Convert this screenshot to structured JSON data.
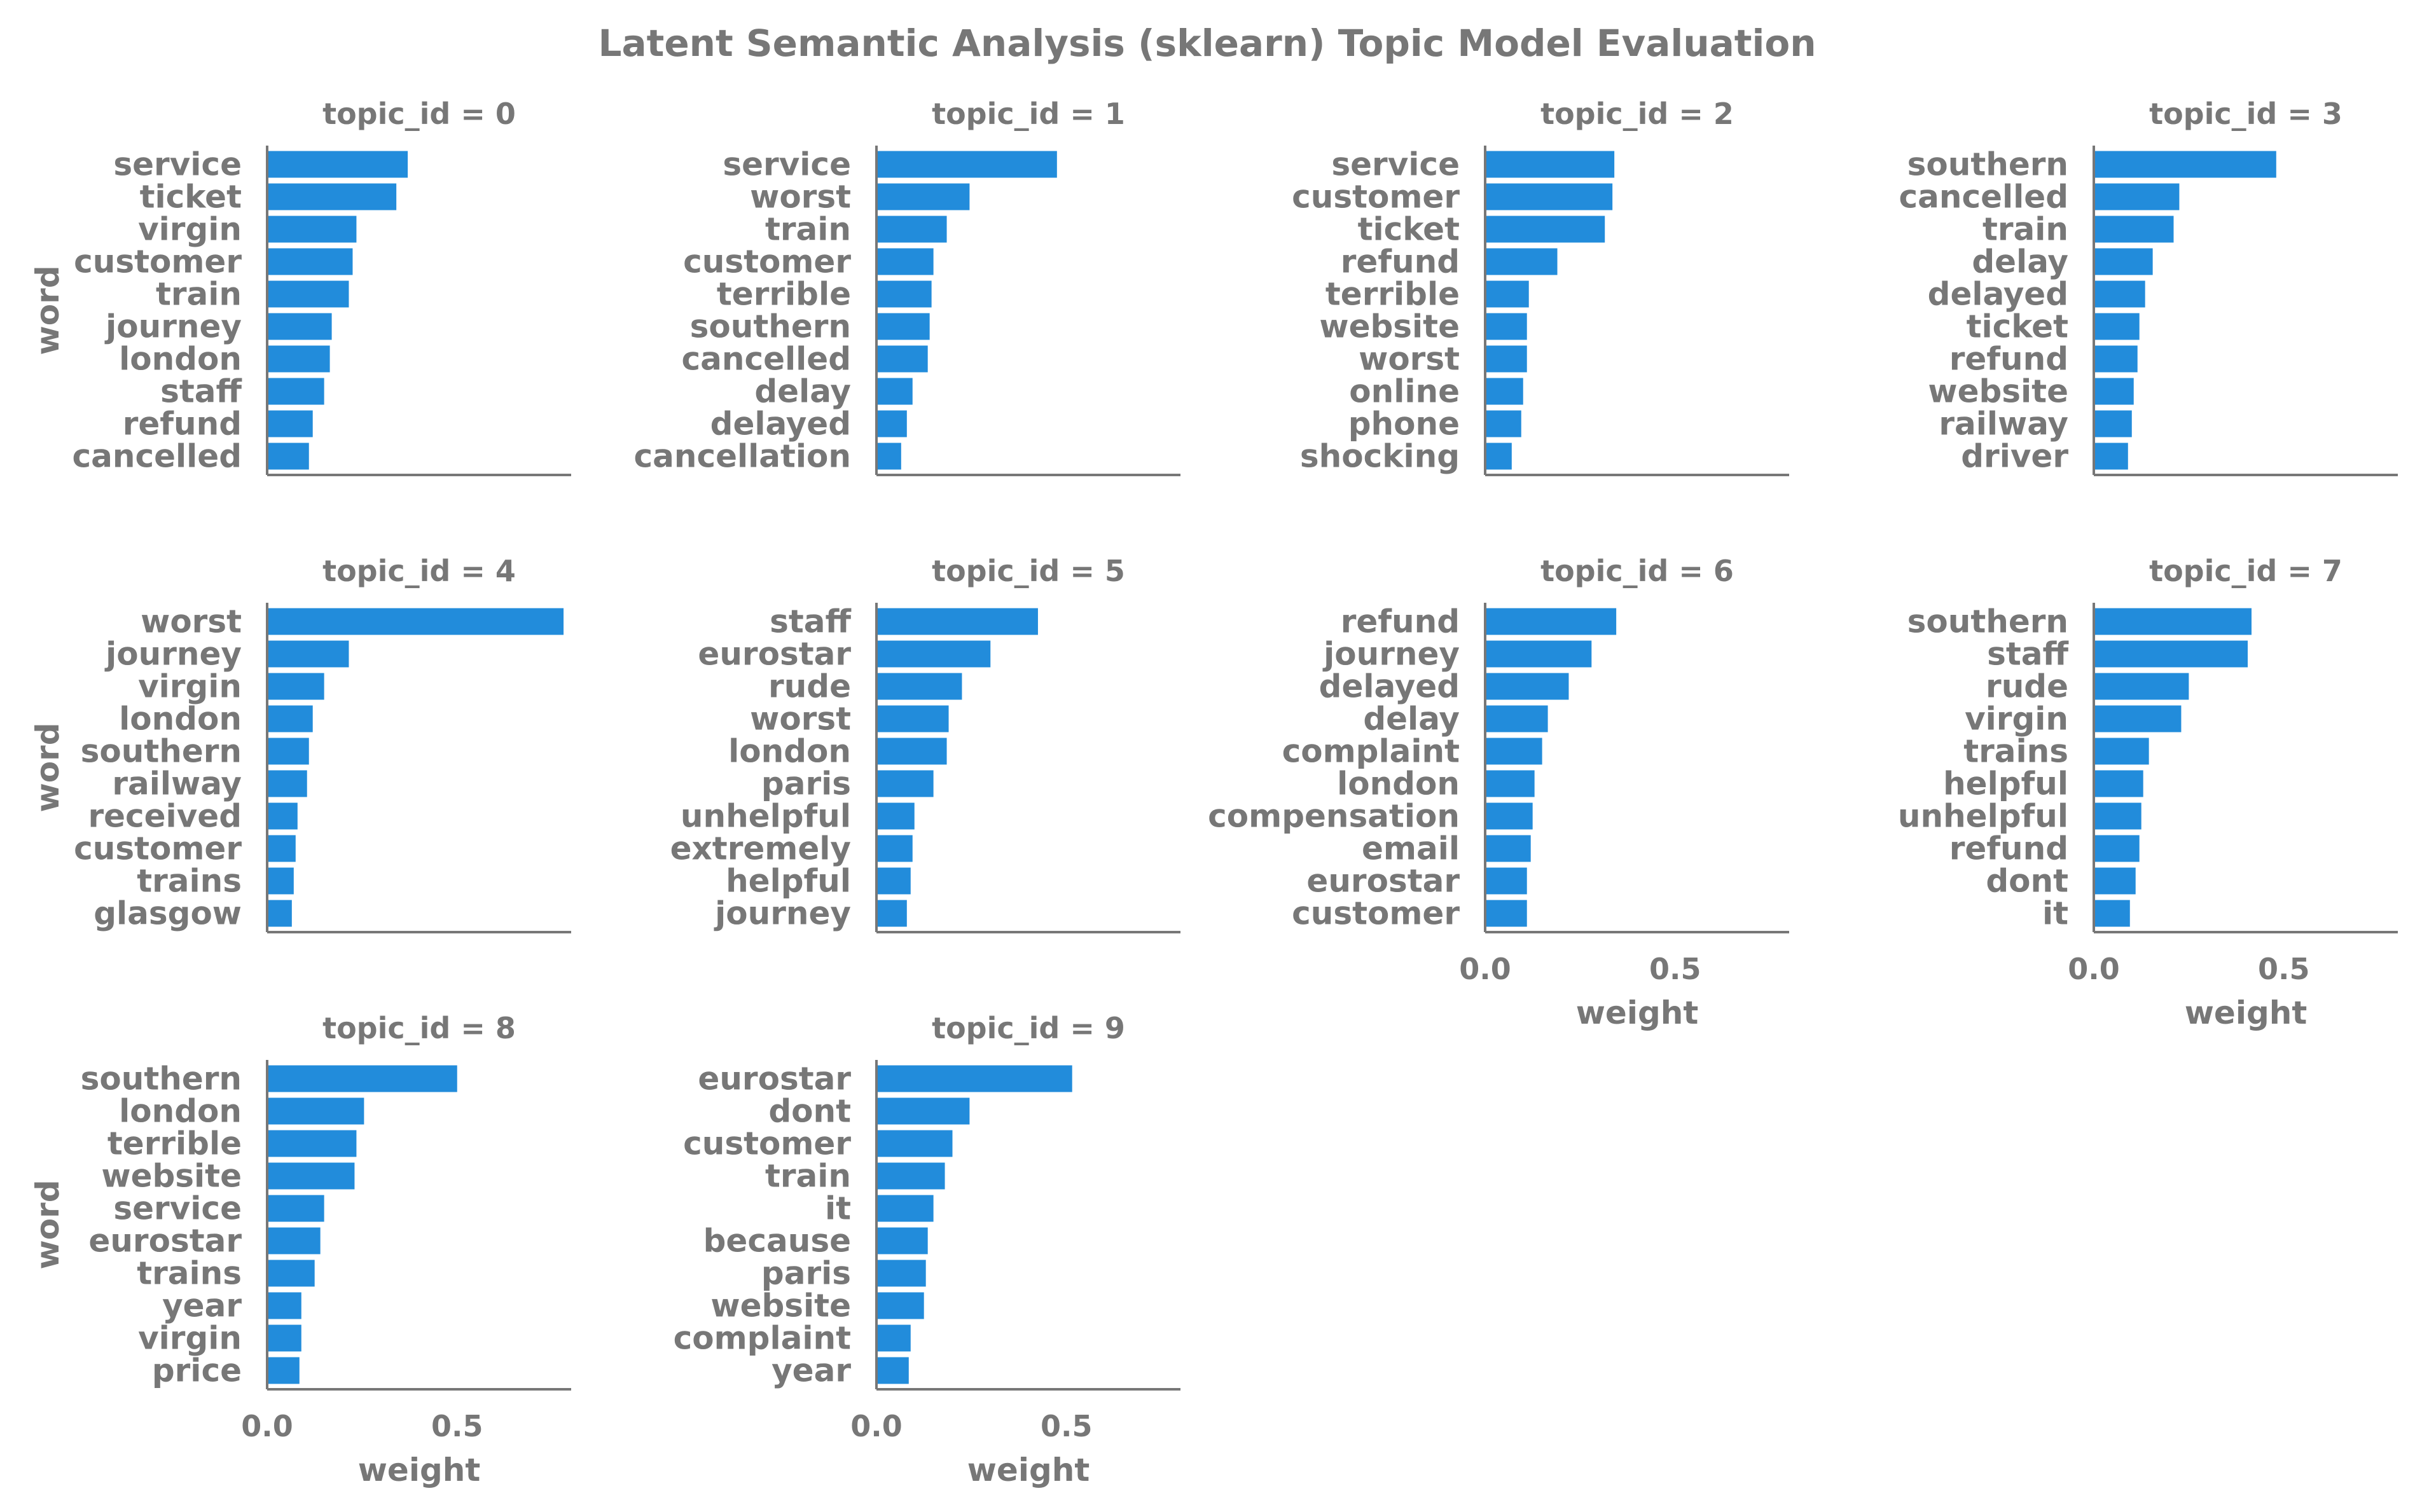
{
  "chart_data": {
    "type": "bar",
    "title": "Latent Semantic Analysis (sklearn) Topic Model Evaluation",
    "facet_label_prefix": "topic_id = ",
    "xlabel": "weight",
    "ylabel": "word",
    "xlim": [
      0,
      0.8
    ],
    "xticks": [
      {
        "value": 0.0,
        "label": "0.0"
      },
      {
        "value": 0.5,
        "label": "0.5"
      }
    ],
    "bar_color": "#228cdb",
    "text_color": "#777777",
    "axis_color": "#777777",
    "facets": [
      {
        "topic_id": "0",
        "words": [
          "service",
          "ticket",
          "virgin",
          "customer",
          "train",
          "journey",
          "london",
          "staff",
          "refund",
          "cancelled"
        ],
        "weights": [
          0.37,
          0.34,
          0.235,
          0.225,
          0.215,
          0.17,
          0.165,
          0.15,
          0.12,
          0.11
        ]
      },
      {
        "topic_id": "1",
        "words": [
          "service",
          "worst",
          "train",
          "customer",
          "terrible",
          "southern",
          "cancelled",
          "delay",
          "delayed",
          "cancellation"
        ],
        "weights": [
          0.475,
          0.245,
          0.185,
          0.15,
          0.145,
          0.14,
          0.135,
          0.095,
          0.08,
          0.065
        ]
      },
      {
        "topic_id": "2",
        "words": [
          "service",
          "customer",
          "ticket",
          "refund",
          "terrible",
          "website",
          "worst",
          "online",
          "phone",
          "shocking"
        ],
        "weights": [
          0.34,
          0.335,
          0.315,
          0.19,
          0.115,
          0.11,
          0.11,
          0.1,
          0.095,
          0.07
        ]
      },
      {
        "topic_id": "3",
        "words": [
          "southern",
          "cancelled",
          "train",
          "delay",
          "delayed",
          "ticket",
          "refund",
          "website",
          "railway",
          "driver"
        ],
        "weights": [
          0.48,
          0.225,
          0.21,
          0.155,
          0.135,
          0.12,
          0.115,
          0.105,
          0.1,
          0.09
        ]
      },
      {
        "topic_id": "4",
        "words": [
          "worst",
          "journey",
          "virgin",
          "london",
          "southern",
          "railway",
          "received",
          "customer",
          "trains",
          "glasgow"
        ],
        "weights": [
          0.78,
          0.215,
          0.15,
          0.12,
          0.11,
          0.105,
          0.08,
          0.075,
          0.07,
          0.065
        ]
      },
      {
        "topic_id": "5",
        "words": [
          "staff",
          "eurostar",
          "rude",
          "worst",
          "london",
          "paris",
          "unhelpful",
          "extremely",
          "helpful",
          "journey"
        ],
        "weights": [
          0.425,
          0.3,
          0.225,
          0.19,
          0.185,
          0.15,
          0.1,
          0.095,
          0.09,
          0.08
        ]
      },
      {
        "topic_id": "6",
        "words": [
          "refund",
          "journey",
          "delayed",
          "delay",
          "complaint",
          "london",
          "compensation",
          "email",
          "eurostar",
          "customer"
        ],
        "weights": [
          0.345,
          0.28,
          0.22,
          0.165,
          0.15,
          0.13,
          0.125,
          0.12,
          0.11,
          0.11
        ]
      },
      {
        "topic_id": "7",
        "words": [
          "southern",
          "staff",
          "rude",
          "virgin",
          "trains",
          "helpful",
          "unhelpful",
          "refund",
          "dont",
          "it"
        ],
        "weights": [
          0.415,
          0.405,
          0.25,
          0.23,
          0.145,
          0.13,
          0.125,
          0.12,
          0.11,
          0.095
        ]
      },
      {
        "topic_id": "8",
        "words": [
          "southern",
          "london",
          "terrible",
          "website",
          "service",
          "eurostar",
          "trains",
          "year",
          "virgin",
          "price"
        ],
        "weights": [
          0.5,
          0.255,
          0.235,
          0.23,
          0.15,
          0.14,
          0.125,
          0.09,
          0.09,
          0.085
        ]
      },
      {
        "topic_id": "9",
        "words": [
          "eurostar",
          "dont",
          "customer",
          "train",
          "it",
          "because",
          "paris",
          "website",
          "complaint",
          "year"
        ],
        "weights": [
          0.515,
          0.245,
          0.2,
          0.18,
          0.15,
          0.135,
          0.13,
          0.125,
          0.09,
          0.085
        ]
      }
    ]
  }
}
